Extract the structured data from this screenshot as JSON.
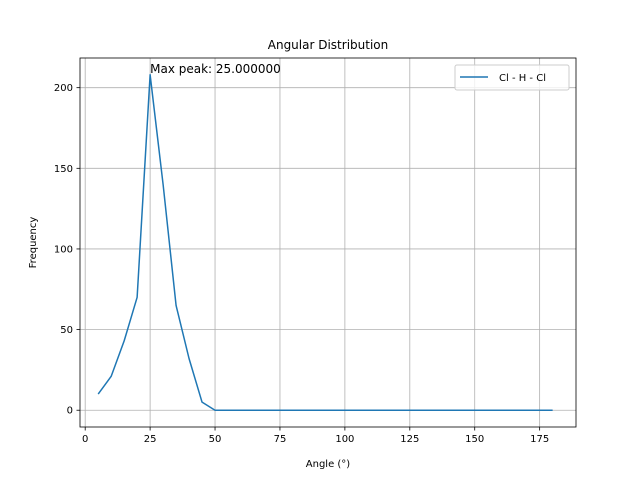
{
  "chart_data": {
    "type": "line",
    "title": "Angular Distribution",
    "xlabel": "Angle (°)",
    "ylabel": "Frequency",
    "xlim": [
      -2,
      189
    ],
    "ylim": [
      -10.4,
      218.4
    ],
    "xticks": [
      0,
      25,
      50,
      75,
      100,
      125,
      150,
      175
    ],
    "yticks": [
      0,
      50,
      100,
      150,
      200
    ],
    "grid": true,
    "legend_position": "top-right",
    "annotation": {
      "text": "Max peak: 25.000000",
      "x": 25,
      "y": 208
    },
    "series": [
      {
        "name": "Cl - H - Cl",
        "color": "#1f77b4",
        "x": [
          5,
          10,
          15,
          20,
          25,
          30,
          35,
          40,
          45,
          50,
          55,
          60,
          65,
          70,
          75,
          80,
          85,
          90,
          95,
          100,
          105,
          110,
          115,
          120,
          125,
          130,
          135,
          140,
          145,
          150,
          155,
          160,
          165,
          170,
          175,
          180
        ],
        "y": [
          10,
          21,
          43,
          70,
          208,
          140,
          65,
          32,
          5,
          0,
          0,
          0,
          0,
          0,
          0,
          0,
          0,
          0,
          0,
          0,
          0,
          0,
          0,
          0,
          0,
          0,
          0,
          0,
          0,
          0,
          0,
          0,
          0,
          0,
          0,
          0
        ]
      }
    ]
  }
}
